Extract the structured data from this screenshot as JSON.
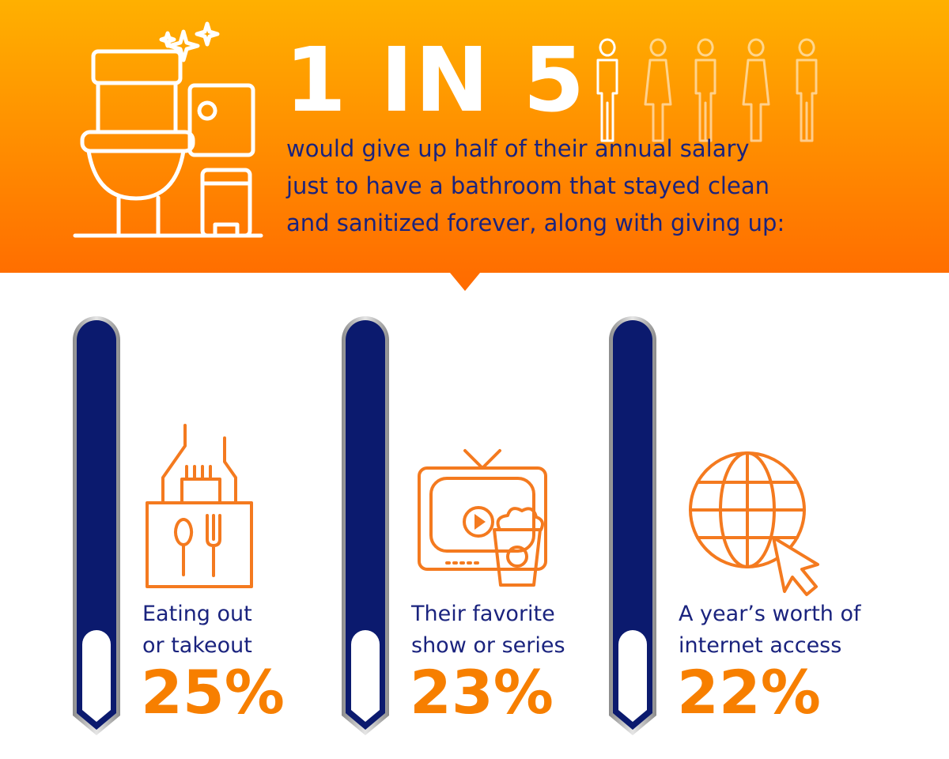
{
  "header": {
    "headline": "1 IN 5",
    "text_lines": [
      "would give up half of their annual salary",
      "just to have a bathroom that stayed clean",
      "and sanitized forever, along with giving up:"
    ]
  },
  "items": [
    {
      "label_lines": [
        "Eating out",
        "or takeout"
      ],
      "percent": "25%"
    },
    {
      "label_lines": [
        "Their favorite",
        "show or series"
      ],
      "percent": "23%"
    },
    {
      "label_lines": [
        "A year’s worth of",
        "internet access"
      ],
      "percent": "22%"
    }
  ]
}
